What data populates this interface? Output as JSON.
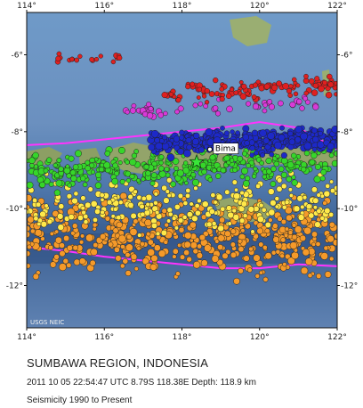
{
  "map": {
    "lon_ticks": [
      {
        "value": 114,
        "label": "114°"
      },
      {
        "value": 116,
        "label": "116°"
      },
      {
        "value": 118,
        "label": "118°"
      },
      {
        "value": 120,
        "label": "120°"
      },
      {
        "value": 122,
        "label": "122°"
      }
    ],
    "lat_ticks": [
      {
        "value": -6,
        "label": "-6°"
      },
      {
        "value": -8,
        "label": "-8°"
      },
      {
        "value": -10,
        "label": "-10°"
      },
      {
        "value": -12,
        "label": "-12°"
      }
    ],
    "lon_range": [
      114,
      122
    ],
    "lat_range": [
      -4.9,
      -13.1
    ],
    "credit": "USGS NEIC",
    "place_label": "Bima",
    "place_point": {
      "lon": 118.72,
      "lat": -8.46
    },
    "epicenter": {
      "lon": 118.38,
      "lat": -8.79
    },
    "plate_boundaries": [
      {
        "name": "northern",
        "color": "#ff33ff",
        "points": [
          [
            114,
            -8.35
          ],
          [
            115,
            -8.3
          ],
          [
            116,
            -8.2
          ],
          [
            117,
            -8.1
          ],
          [
            118,
            -8.0
          ],
          [
            119,
            -7.9
          ],
          [
            120,
            -7.75
          ],
          [
            121,
            -7.9
          ],
          [
            122,
            -8.45
          ]
        ]
      },
      {
        "name": "southern",
        "color": "#ff33ff",
        "points": [
          [
            114,
            -11.0
          ],
          [
            115,
            -11.1
          ],
          [
            116,
            -11.25
          ],
          [
            117,
            -11.35
          ],
          [
            118,
            -11.45
          ],
          [
            119,
            -11.55
          ],
          [
            120,
            -11.55
          ],
          [
            121,
            -11.45
          ],
          [
            122,
            -11.5
          ]
        ]
      }
    ],
    "colors": {
      "ocean": "#5f86b8",
      "deep": "#33558a",
      "land": "#8ea36a",
      "depth_shallow": "#f59a2a",
      "depth_yellow": "#ffe94a",
      "depth_green": "#36d62a",
      "depth_blue": "#1d29c8",
      "depth_magenta": "#d83ad8",
      "depth_red": "#e02020"
    }
  },
  "caption": {
    "title": "SUMBAWA REGION, INDONESIA",
    "event": "2011 10 05 22:54:47 UTC 8.79S 118.38E Depth: 118.9 km",
    "seismicity": "Seismicity 1990 to Present"
  }
}
